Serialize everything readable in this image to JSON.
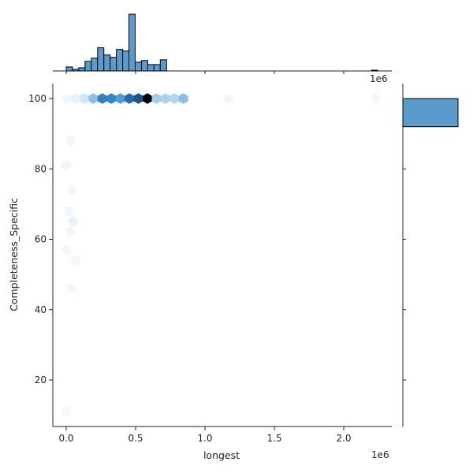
{
  "chart_data": {
    "type": "jointplot-hexbin",
    "xlabel": "longest",
    "ylabel": "Completeness_Specific",
    "x_offset_label": "1e6",
    "marginal_x_offset_label": "1e6",
    "xlim": [
      -0.08,
      2.3
    ],
    "ylim": [
      6,
      105
    ],
    "x_ticks": [
      0.0,
      0.5,
      1.0,
      1.5,
      2.0
    ],
    "x_tick_labels": [
      "0.0",
      "0.5",
      "1.0",
      "1.5",
      "2.0"
    ],
    "y_ticks": [
      20,
      40,
      60,
      80,
      100
    ],
    "y_tick_labels": [
      "20",
      "40",
      "60",
      "80",
      "100"
    ],
    "colors": {
      "hist_fill": "#5b9bcb",
      "hist_edge": "#000000",
      "hex_dark": "#000000",
      "hex_mid": "#2f86cf",
      "hex_light": "#c6dcf0"
    },
    "hexbins": [
      {
        "x": 0.0,
        "y": 100,
        "intensity": 0.02
      },
      {
        "x": 0.065,
        "y": 100,
        "intensity": 0.05
      },
      {
        "x": 0.13,
        "y": 100,
        "intensity": 0.12
      },
      {
        "x": 0.195,
        "y": 100,
        "intensity": 0.32
      },
      {
        "x": 0.26,
        "y": 100,
        "intensity": 0.62
      },
      {
        "x": 0.325,
        "y": 100,
        "intensity": 0.6
      },
      {
        "x": 0.39,
        "y": 100,
        "intensity": 0.5
      },
      {
        "x": 0.455,
        "y": 100,
        "intensity": 0.72
      },
      {
        "x": 0.52,
        "y": 100,
        "intensity": 0.82
      },
      {
        "x": 0.585,
        "y": 100,
        "intensity": 1.0
      },
      {
        "x": 0.65,
        "y": 100,
        "intensity": 0.25
      },
      {
        "x": 0.715,
        "y": 100,
        "intensity": 0.22
      },
      {
        "x": 0.78,
        "y": 100,
        "intensity": 0.2
      },
      {
        "x": 0.845,
        "y": 100,
        "intensity": 0.32
      },
      {
        "x": 1.17,
        "y": 100,
        "intensity": 0.02
      },
      {
        "x": 2.23,
        "y": 100,
        "intensity": 0.02
      },
      {
        "x": 0.03,
        "y": 88,
        "intensity": 0.02
      },
      {
        "x": 0.0,
        "y": 81,
        "intensity": 0.03
      },
      {
        "x": 0.04,
        "y": 74,
        "intensity": 0.02
      },
      {
        "x": 0.02,
        "y": 68,
        "intensity": 0.03
      },
      {
        "x": 0.05,
        "y": 65,
        "intensity": 0.04
      },
      {
        "x": 0.03,
        "y": 62,
        "intensity": 0.02
      },
      {
        "x": 0.0,
        "y": 57,
        "intensity": 0.02
      },
      {
        "x": 0.07,
        "y": 54,
        "intensity": 0.02
      },
      {
        "x": 0.04,
        "y": 46,
        "intensity": 0.02
      },
      {
        "x": 0.0,
        "y": 11,
        "intensity": 0.02
      }
    ],
    "marginal_x_hist": {
      "bin_width": 0.0452,
      "bins": [
        {
          "x0": 0.0,
          "count": 5
        },
        {
          "x0": 0.0452,
          "count": 2
        },
        {
          "x0": 0.0904,
          "count": 4
        },
        {
          "x0": 0.1356,
          "count": 12
        },
        {
          "x0": 0.1808,
          "count": 16
        },
        {
          "x0": 0.226,
          "count": 29
        },
        {
          "x0": 0.2712,
          "count": 20
        },
        {
          "x0": 0.3164,
          "count": 17
        },
        {
          "x0": 0.3616,
          "count": 27
        },
        {
          "x0": 0.4068,
          "count": 25
        },
        {
          "x0": 0.452,
          "count": 71
        },
        {
          "x0": 0.4972,
          "count": 11
        },
        {
          "x0": 0.5424,
          "count": 13
        },
        {
          "x0": 0.5876,
          "count": 8
        },
        {
          "x0": 0.6328,
          "count": 8
        },
        {
          "x0": 0.678,
          "count": 14
        },
        {
          "x0": 0.7232,
          "count": 0
        },
        {
          "x0": 0.7684,
          "count": 0
        },
        {
          "x0": 0.8136,
          "count": 0
        },
        {
          "x0": 2.2,
          "count": 1
        }
      ]
    },
    "marginal_y_hist": {
      "bins": [
        {
          "y0": 92,
          "y1": 100,
          "count": 1.0
        }
      ]
    }
  }
}
